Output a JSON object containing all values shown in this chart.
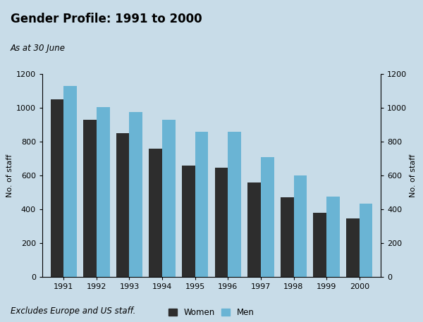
{
  "title": "Gender Profile: 1991 to 2000",
  "subtitle": "As at 30 June",
  "footnote": "Excludes Europe and US staff.",
  "years": [
    1991,
    1992,
    1993,
    1994,
    1995,
    1996,
    1997,
    1998,
    1999,
    2000
  ],
  "women": [
    1050,
    930,
    850,
    760,
    660,
    645,
    560,
    470,
    380,
    345
  ],
  "men": [
    1130,
    1005,
    975,
    930,
    860,
    860,
    710,
    600,
    475,
    435
  ],
  "women_color": "#2d2d2d",
  "men_color": "#6ab4d4",
  "ylim": [
    0,
    1200
  ],
  "yticks": [
    0,
    200,
    400,
    600,
    800,
    1000,
    1200
  ],
  "ylabel": "No. of staff",
  "bar_width": 0.4,
  "header_bg": "#5ab0d0",
  "plot_bg": "#c8dce8",
  "outer_bg": "#c8dce8",
  "title_fontsize": 12,
  "subtitle_fontsize": 8.5,
  "legend_fontsize": 8.5,
  "tick_fontsize": 8,
  "ylabel_fontsize": 8
}
